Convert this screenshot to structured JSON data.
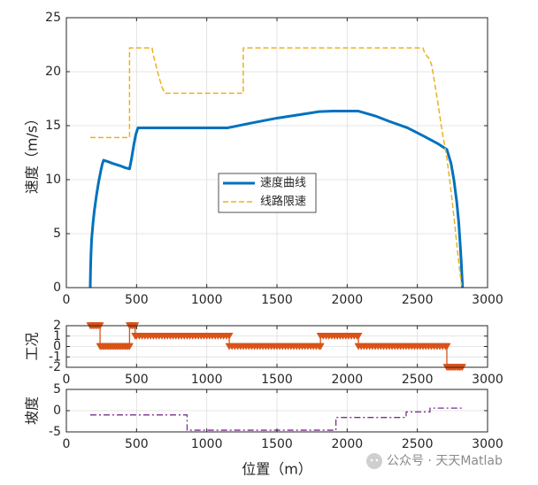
{
  "watermark": "公众号 · 天天Matlab",
  "chart_data": [
    {
      "type": "line",
      "ylabel": "速度（m/s）",
      "xlabel": "",
      "xlim": [
        0,
        3000
      ],
      "ylim": [
        0,
        25
      ],
      "xticks": [
        0,
        500,
        1000,
        1500,
        2000,
        2500,
        3000
      ],
      "yticks": [
        0,
        5,
        10,
        15,
        20,
        25
      ],
      "grid": true,
      "legend": {
        "position": "center"
      },
      "series": [
        {
          "name": "速度曲线",
          "style": "solid",
          "color": "#0072BD",
          "x": [
            170,
            172,
            175,
            180,
            190,
            200,
            215,
            230,
            245,
            255,
            265,
            290,
            330,
            380,
            420,
            450,
            465,
            480,
            495,
            510,
            520,
            600,
            800,
            1000,
            1150,
            1300,
            1500,
            1700,
            1800,
            1900,
            2000,
            2080,
            2200,
            2300,
            2430,
            2550,
            2650,
            2710,
            2740,
            2760,
            2780,
            2795,
            2805,
            2812,
            2818,
            2822
          ],
          "y": [
            0,
            1.5,
            3.0,
            4.5,
            6.0,
            7.2,
            8.6,
            9.8,
            10.8,
            11.4,
            11.8,
            11.7,
            11.5,
            11.3,
            11.1,
            11.0,
            12.0,
            13.2,
            14.2,
            14.8,
            14.8,
            14.8,
            14.8,
            14.8,
            14.8,
            15.2,
            15.7,
            16.1,
            16.3,
            16.35,
            16.35,
            16.35,
            15.9,
            15.4,
            14.8,
            14.0,
            13.3,
            12.8,
            11.5,
            10.0,
            8.0,
            6.0,
            4.0,
            2.5,
            1.0,
            0
          ]
        },
        {
          "name": "线路限速",
          "style": "dashed",
          "color": "#EDB120",
          "x": [
            170,
            450,
            450,
            610,
            620,
            640,
            660,
            680,
            700,
            1260,
            1260,
            2540,
            2550,
            2560,
            2570,
            2580,
            2590,
            2600,
            2610,
            2620,
            2635,
            2650,
            2670,
            2690,
            2710,
            2730,
            2750,
            2770,
            2785,
            2800,
            2815
          ],
          "y": [
            13.9,
            13.9,
            22.2,
            22.2,
            21.5,
            20.5,
            19.5,
            18.6,
            18.0,
            18.0,
            22.2,
            22.2,
            21.8,
            21.6,
            21.4,
            21.3,
            21.0,
            20.7,
            20.0,
            19.2,
            18.0,
            16.8,
            15.0,
            13.5,
            12.0,
            10.0,
            7.8,
            5.4,
            3.5,
            1.8,
            0.2
          ]
        }
      ]
    },
    {
      "type": "line",
      "ylabel": "工况",
      "xlabel": "",
      "xlim": [
        0,
        3000
      ],
      "ylim": [
        -2,
        2
      ],
      "xticks": [
        0,
        500,
        1000,
        1500,
        2000,
        2500,
        3000
      ],
      "yticks": [
        -2,
        -1,
        0,
        1,
        2
      ],
      "grid": true,
      "series": [
        {
          "name": "",
          "style": "solid",
          "marker": "triangle-down",
          "color": "#D95319",
          "x": [
            170,
            180,
            190,
            200,
            210,
            220,
            230,
            240,
            240,
            250,
            260,
            270,
            280,
            290,
            300,
            310,
            320,
            330,
            340,
            350,
            360,
            370,
            380,
            390,
            400,
            410,
            420,
            430,
            440,
            450,
            450,
            460,
            470,
            480,
            490,
            490,
            500,
            520,
            540,
            560,
            580,
            600,
            620,
            640,
            660,
            680,
            700,
            720,
            740,
            760,
            780,
            800,
            820,
            840,
            860,
            880,
            900,
            920,
            940,
            960,
            980,
            1000,
            1020,
            1040,
            1060,
            1080,
            1100,
            1120,
            1140,
            1160,
            1160,
            1180,
            1200,
            1220,
            1240,
            1260,
            1280,
            1300,
            1320,
            1340,
            1360,
            1380,
            1400,
            1420,
            1440,
            1460,
            1480,
            1500,
            1520,
            1540,
            1560,
            1580,
            1600,
            1620,
            1640,
            1660,
            1680,
            1700,
            1720,
            1740,
            1760,
            1780,
            1800,
            1810,
            1810,
            1830,
            1850,
            1870,
            1890,
            1910,
            1930,
            1950,
            1970,
            1990,
            2010,
            2030,
            2050,
            2070,
            2080,
            2080,
            2100,
            2120,
            2140,
            2160,
            2180,
            2200,
            2220,
            2240,
            2260,
            2280,
            2300,
            2320,
            2340,
            2360,
            2380,
            2400,
            2420,
            2440,
            2460,
            2480,
            2500,
            2520,
            2540,
            2560,
            2580,
            2600,
            2620,
            2640,
            2660,
            2680,
            2700,
            2710,
            2710,
            2720,
            2730,
            2740,
            2750,
            2760,
            2770,
            2780,
            2790,
            2800,
            2810,
            2820
          ],
          "y": [
            2,
            2,
            2,
            2,
            2,
            2,
            2,
            2,
            0,
            0,
            0,
            0,
            0,
            0,
            0,
            0,
            0,
            0,
            0,
            0,
            0,
            0,
            0,
            0,
            0,
            0,
            0,
            0,
            0,
            0,
            2,
            2,
            2,
            2,
            2,
            1,
            1,
            1,
            1,
            1,
            1,
            1,
            1,
            1,
            1,
            1,
            1,
            1,
            1,
            1,
            1,
            1,
            1,
            1,
            1,
            1,
            1,
            1,
            1,
            1,
            1,
            1,
            1,
            1,
            1,
            1,
            1,
            1,
            1,
            1,
            0,
            0,
            0,
            0,
            0,
            0,
            0,
            0,
            0,
            0,
            0,
            0,
            0,
            0,
            0,
            0,
            0,
            0,
            0,
            0,
            0,
            0,
            0,
            0,
            0,
            0,
            0,
            0,
            0,
            0,
            0,
            0,
            0,
            0,
            1,
            1,
            1,
            1,
            1,
            1,
            1,
            1,
            1,
            1,
            1,
            1,
            1,
            1,
            1,
            0,
            0,
            0,
            0,
            0,
            0,
            0,
            0,
            0,
            0,
            0,
            0,
            0,
            0,
            0,
            0,
            0,
            0,
            0,
            0,
            0,
            0,
            0,
            0,
            0,
            0,
            0,
            0,
            0,
            0,
            0,
            0,
            0,
            -2,
            -2,
            -2,
            -2,
            -2,
            -2,
            -2,
            -2,
            -2,
            -2,
            -2,
            -2
          ]
        }
      ]
    },
    {
      "type": "line",
      "ylabel": "坡度",
      "xlabel": "位置（m）",
      "xlim": [
        0,
        3000
      ],
      "ylim": [
        -5,
        5
      ],
      "xticks": [
        0,
        500,
        1000,
        1500,
        2000,
        2500,
        3000
      ],
      "yticks": [
        -5,
        0,
        5
      ],
      "grid": true,
      "series": [
        {
          "name": "",
          "style": "dashdot",
          "color": "#7E2F8E",
          "x": [
            170,
            860,
            860,
            1920,
            1920,
            2420,
            2420,
            2590,
            2590,
            2820
          ],
          "y": [
            -1.0,
            -1.0,
            -4.6,
            -4.6,
            -1.6,
            -1.6,
            -0.3,
            -0.3,
            0.6,
            0.6
          ]
        }
      ]
    }
  ]
}
